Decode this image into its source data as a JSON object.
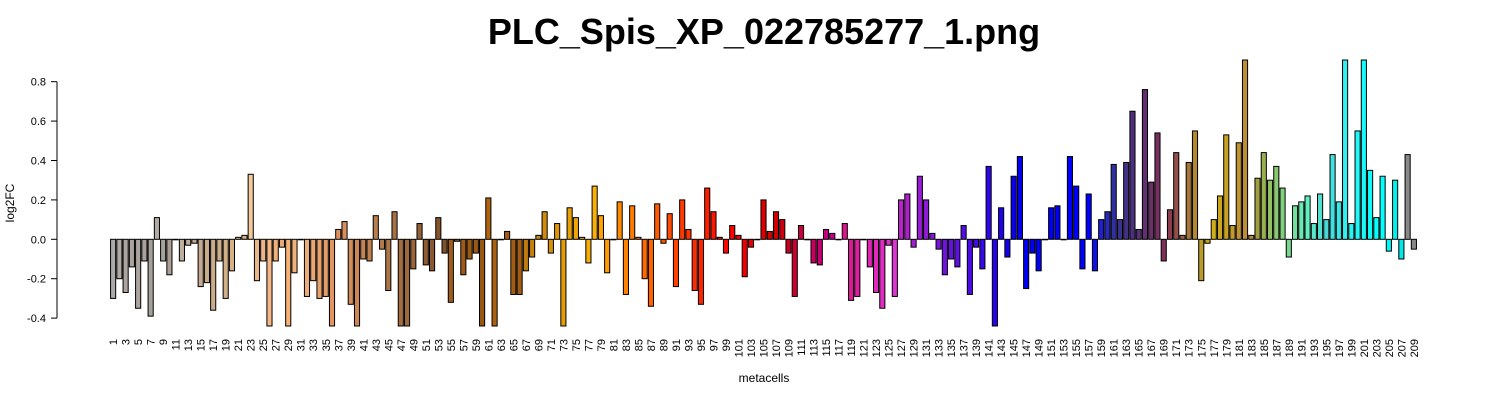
{
  "chart_data": {
    "type": "bar",
    "title": "PLC_Spis_XP_022785277_1.png",
    "xlabel": "metacells",
    "ylabel": "log2FC",
    "ylim": [
      -0.44,
      0.91
    ],
    "yticks": [
      -0.4,
      -0.2,
      0.0,
      0.2,
      0.4,
      0.6,
      0.8
    ],
    "ytick_labels": [
      "-0.4",
      "-0.2",
      "0.0",
      "0.2",
      "0.4",
      "0.6",
      "0.8"
    ],
    "x_tick_every": 2,
    "grid": false,
    "categories": [
      1,
      2,
      3,
      4,
      5,
      6,
      7,
      8,
      9,
      10,
      11,
      12,
      13,
      14,
      15,
      16,
      17,
      18,
      19,
      20,
      21,
      22,
      23,
      24,
      25,
      26,
      27,
      28,
      29,
      30,
      31,
      32,
      33,
      34,
      35,
      36,
      37,
      38,
      39,
      40,
      41,
      42,
      43,
      44,
      45,
      46,
      47,
      48,
      49,
      50,
      51,
      52,
      53,
      54,
      55,
      56,
      57,
      58,
      59,
      60,
      61,
      62,
      63,
      64,
      65,
      66,
      67,
      68,
      69,
      70,
      71,
      72,
      73,
      74,
      75,
      76,
      77,
      78,
      79,
      80,
      81,
      82,
      83,
      84,
      85,
      86,
      87,
      88,
      89,
      90,
      91,
      92,
      93,
      94,
      95,
      96,
      97,
      98,
      99,
      100,
      101,
      102,
      103,
      104,
      105,
      106,
      107,
      108,
      109,
      110,
      111,
      112,
      113,
      114,
      115,
      116,
      117,
      118,
      119,
      120,
      121,
      122,
      123,
      124,
      125,
      126,
      127,
      128,
      129,
      130,
      131,
      132,
      133,
      134,
      135,
      136,
      137,
      138,
      139,
      140,
      141,
      142,
      143,
      144,
      145,
      146,
      147,
      148,
      149,
      150,
      151,
      152,
      153,
      154,
      155,
      156,
      157,
      158,
      159,
      160,
      161,
      162,
      163,
      164,
      165,
      166,
      167,
      168,
      169,
      170,
      171,
      172,
      173,
      174,
      175,
      176,
      177,
      178,
      179,
      180,
      181,
      182,
      183,
      184,
      185,
      186,
      187,
      188,
      189,
      190,
      191,
      192,
      193,
      194,
      195,
      196,
      197,
      198,
      199,
      200,
      201,
      202,
      203,
      204,
      205,
      206,
      207,
      208,
      209
    ],
    "values": [
      -0.3,
      -0.2,
      -0.27,
      -0.14,
      -0.35,
      -0.11,
      -0.39,
      0.11,
      -0.11,
      -0.18,
      0.0,
      -0.11,
      -0.03,
      -0.02,
      -0.24,
      -0.22,
      -0.36,
      -0.11,
      -0.3,
      -0.16,
      0.01,
      0.02,
      0.33,
      -0.21,
      -0.11,
      -0.44,
      -0.11,
      -0.04,
      -0.44,
      -0.17,
      0.0,
      -0.29,
      -0.21,
      -0.3,
      -0.29,
      -0.44,
      0.05,
      0.09,
      -0.33,
      -0.44,
      -0.1,
      -0.11,
      0.12,
      -0.05,
      -0.26,
      0.14,
      -0.44,
      -0.44,
      -0.15,
      0.08,
      -0.13,
      -0.16,
      0.11,
      -0.07,
      -0.32,
      -0.01,
      -0.18,
      -0.1,
      -0.07,
      -0.44,
      0.21,
      -0.44,
      0.0,
      0.04,
      -0.28,
      -0.28,
      -0.16,
      -0.09,
      0.02,
      0.14,
      -0.07,
      0.08,
      -0.44,
      0.16,
      0.11,
      0.01,
      -0.12,
      0.27,
      0.12,
      -0.17,
      0.0,
      0.19,
      -0.28,
      0.17,
      0.01,
      -0.2,
      -0.34,
      0.18,
      -0.02,
      0.13,
      -0.24,
      0.2,
      0.05,
      -0.26,
      -0.33,
      0.26,
      0.14,
      0.01,
      -0.07,
      0.07,
      0.02,
      -0.19,
      -0.04,
      0.0,
      0.2,
      0.04,
      0.14,
      0.1,
      -0.07,
      -0.29,
      0.07,
      0.0,
      -0.12,
      -0.13,
      0.05,
      0.03,
      0.0,
      0.08,
      -0.31,
      -0.29,
      0.0,
      -0.14,
      -0.27,
      -0.35,
      -0.03,
      -0.29,
      0.2,
      0.23,
      -0.04,
      0.32,
      0.2,
      0.03,
      -0.05,
      -0.18,
      -0.1,
      -0.14,
      0.07,
      -0.28,
      -0.04,
      -0.15,
      0.37,
      -0.44,
      0.16,
      -0.09,
      0.32,
      0.42,
      -0.25,
      -0.07,
      -0.16,
      0.0,
      0.16,
      0.17,
      0.0,
      0.42,
      0.27,
      -0.15,
      0.23,
      -0.16,
      0.1,
      0.14,
      0.38,
      0.1,
      0.39,
      0.65,
      0.05,
      0.76,
      0.29,
      0.54,
      -0.11,
      0.15,
      0.44,
      0.02,
      0.39,
      0.55,
      -0.21,
      -0.02,
      0.1,
      0.22,
      0.53,
      0.07,
      0.49,
      0.91,
      0.02,
      0.31,
      0.44,
      0.3,
      0.37,
      0.26,
      -0.09,
      0.17,
      0.19,
      0.22,
      0.08,
      0.23,
      0.1,
      0.43,
      0.19,
      0.91,
      0.08,
      0.55,
      0.91,
      0.35,
      0.11,
      0.32,
      -0.06,
      0.3,
      -0.1,
      0.43,
      -0.05
    ],
    "colors": [
      "#aaaaaa",
      "#b0a9a4",
      "#aba49f",
      "#aaa39e",
      "#aca49e",
      "#a9a29d",
      "#a6a09a",
      "#b3aba5",
      "#a8a29c",
      "#ab9f93",
      "#c0b2a4",
      "#beaf9e",
      "#c0ad99",
      "#c0a994",
      "#c3aa90",
      "#c8ac8c",
      "#cbad8a",
      "#ceae88",
      "#d2b087",
      "#d5b185",
      "#d8b283",
      "#dbb381",
      "#f4c89a",
      "#e8b888",
      "#eeb686",
      "#f4b886",
      "#f1b07b",
      "#eda770",
      "#f6b277",
      "#f2b07a",
      "#efaf7c",
      "#ebad79",
      "#e9a671",
      "#e6a16c",
      "#e39c67",
      "#e19661",
      "#de925e",
      "#d88f5c",
      "#d28c5a",
      "#cb8856",
      "#c58553",
      "#bf8150",
      "#b97e4d",
      "#b27a4a",
      "#ad7647",
      "#a87143",
      "#a36d40",
      "#9e693c",
      "#996539",
      "#946136",
      "#8f5c32",
      "#8a5830",
      "#85542c",
      "#805028",
      "#a05c1c",
      "#9e5b1a",
      "#9d5a18",
      "#9b5916",
      "#995815",
      "#985713",
      "#b0640f",
      "#aa6210",
      "#a66011",
      "#a45e12",
      "#a25d13",
      "#a05b14",
      "#c07a0d",
      "#c7800c",
      "#cc850b",
      "#d28b0a",
      "#d89009",
      "#de9608",
      "#e39b08",
      "#e8a008",
      "#eda508",
      "#f2aa08",
      "#f7ad08",
      "#fbb008",
      "#ffa200",
      "#ff9b00",
      "#ff9200",
      "#ff8a00",
      "#ff8200",
      "#ff7a00",
      "#ff7100",
      "#ff6900",
      "#ff6100",
      "#ff5a00",
      "#ff5200",
      "#ff4a00",
      "#ff4200",
      "#ff3a00",
      "#ff3300",
      "#ff2c00",
      "#ff2400",
      "#ff1d00",
      "#ff1500",
      "#ff0e00",
      "#ff0700",
      "#ff0000",
      "#f80000",
      "#f10000",
      "#ea0000",
      "#e30000",
      "#dc0000",
      "#d50000",
      "#ce0000",
      "#cc0010",
      "#cb0020",
      "#ca0030",
      "#c90040",
      "#c80050",
      "#c70060",
      "#c60070",
      "#c50080",
      "#c40090",
      "#d71177",
      "#da168a",
      "#dc1a95",
      "#dd1e9f",
      "#de21a8",
      "#df25b1",
      "#e028ba",
      "#e02cc3",
      "#df30cc",
      "#dd34d4",
      "#b822c8",
      "#ad20cc",
      "#a21ed0",
      "#981cd3",
      "#8e1ad6",
      "#8418d9",
      "#7a16db",
      "#7014dd",
      "#6612df",
      "#5c10e1",
      "#530ee3",
      "#4a0ce5",
      "#410ae6",
      "#3808e8",
      "#2f06e9",
      "#2604ea",
      "#1d02eb",
      "#1400ec",
      "#0b00ed",
      "#0200ee",
      "#0000f0",
      "#0000f2",
      "#0000f4",
      "#0000f6",
      "#0000f8",
      "#0000f9",
      "#0000fa",
      "#0000fb",
      "#0000fc",
      "#0000fd",
      "#0000fe",
      "#1010e8",
      "#2020d0",
      "#2a2ab8",
      "#3030a0",
      "#3a3090",
      "#443088",
      "#4e3080",
      "#583078",
      "#623070",
      "#6c3068",
      "#763060",
      "#803058",
      "#8a3d50",
      "#945048",
      "#9e6340",
      "#a87638",
      "#b28930",
      "#bc9c28",
      "#c6a520",
      "#d0ae18",
      "#cca61e",
      "#c8a024",
      "#c49a2a",
      "#c09430",
      "#bc8e36",
      "#b8883c",
      "#a0a040",
      "#98b050",
      "#90c060",
      "#88c870",
      "#80d080",
      "#78d890",
      "#70e0a0",
      "#68e8b0",
      "#60f0c0",
      "#58e8c8",
      "#50e0d0",
      "#48d8d8",
      "#40e0e0",
      "#38e8e8",
      "#30f0f0",
      "#28f4f4",
      "#20f8f8",
      "#18fafa",
      "#10fcfc",
      "#08fefe",
      "#00ffff",
      "#00f8f8",
      "#00f0f0",
      "#00e8e8"
    ]
  }
}
